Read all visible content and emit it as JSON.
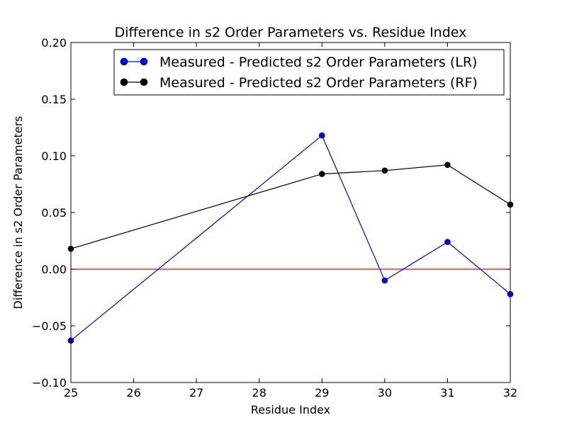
{
  "chart_data": {
    "type": "line",
    "title": "Difference in s2 Order Parameters vs. Residue Index",
    "xlabel": "Residue Index",
    "ylabel": "Difference in s2 Order Parameters",
    "xlim": [
      25,
      32
    ],
    "ylim": [
      -0.1,
      0.2
    ],
    "xticks": [
      "25",
      "26",
      "27",
      "28",
      "29",
      "30",
      "31",
      "32"
    ],
    "yticks": [
      "−0.10",
      "−0.05",
      "0.00",
      "0.05",
      "0.10",
      "0.15",
      "0.20"
    ],
    "grid": false,
    "legend_position": "top-right",
    "reference_line": {
      "y": 0.0,
      "color": "#ff0000"
    },
    "series": [
      {
        "name": "Measured - Predicted s2 Order Parameters (LR)",
        "color": "#0000ff",
        "x": [
          25,
          29,
          30,
          31,
          32
        ],
        "y": [
          -0.063,
          0.118,
          -0.01,
          0.024,
          -0.022
        ]
      },
      {
        "name": "Measured - Predicted s2 Order Parameters (RF)",
        "color": "#000000",
        "x": [
          25,
          29,
          30,
          31,
          32
        ],
        "y": [
          0.018,
          0.084,
          0.087,
          0.092,
          0.057
        ]
      }
    ]
  }
}
